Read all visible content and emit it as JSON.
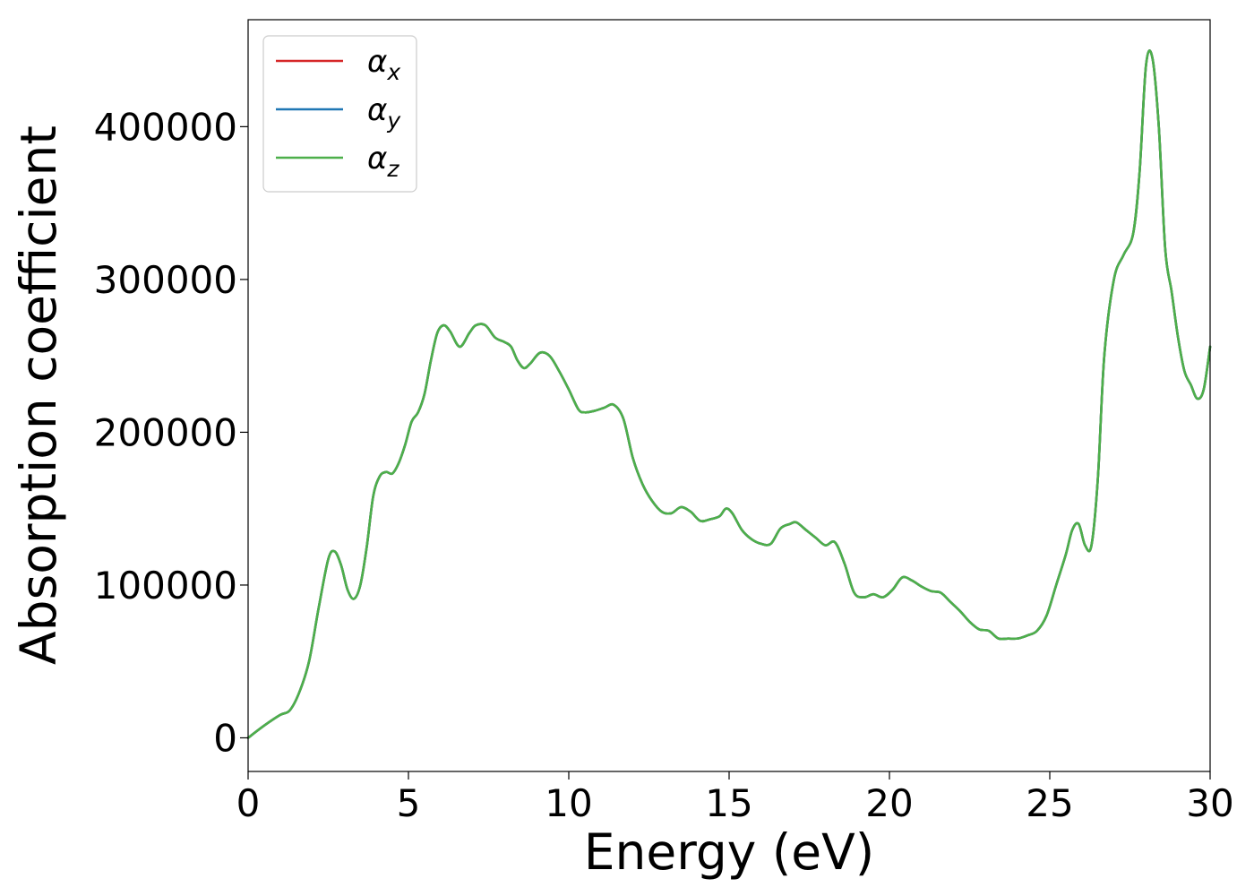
{
  "chart_data": {
    "type": "line",
    "title": "",
    "xlabel": "Energy (eV)",
    "ylabel": "Absorption coefficient",
    "xlim": [
      0,
      30
    ],
    "ylim": [
      -22000,
      470000
    ],
    "xticks": [
      0,
      5,
      10,
      15,
      20,
      25,
      30
    ],
    "yticks": [
      0,
      100000,
      200000,
      300000,
      400000
    ],
    "xtick_labels": [
      "0",
      "5",
      "10",
      "15",
      "20",
      "25",
      "30"
    ],
    "ytick_labels": [
      "0",
      "100000",
      "200000",
      "300000",
      "400000"
    ],
    "grid": false,
    "legend_position": "top-left",
    "series": [
      {
        "name": "αx",
        "label_base": "α",
        "label_sub": "x",
        "color": "#d62728"
      },
      {
        "name": "αy",
        "label_base": "α",
        "label_sub": "y",
        "color": "#1f77b4"
      },
      {
        "name": "αz",
        "label_base": "α",
        "label_sub": "z",
        "color": "#4daf4a"
      }
    ],
    "x": [
      0,
      0.5,
      1.0,
      1.3,
      1.6,
      1.9,
      2.2,
      2.5,
      2.7,
      2.9,
      3.1,
      3.3,
      3.5,
      3.7,
      3.9,
      4.1,
      4.3,
      4.5,
      4.7,
      4.9,
      5.1,
      5.3,
      5.5,
      5.7,
      5.9,
      6.1,
      6.3,
      6.6,
      6.9,
      7.1,
      7.4,
      7.7,
      8.0,
      8.2,
      8.4,
      8.6,
      8.8,
      9.1,
      9.4,
      9.7,
      10.0,
      10.3,
      10.5,
      10.8,
      11.1,
      11.4,
      11.7,
      12.0,
      12.3,
      12.6,
      12.9,
      13.2,
      13.5,
      13.8,
      14.1,
      14.4,
      14.7,
      14.9,
      15.1,
      15.4,
      15.7,
      16.0,
      16.3,
      16.6,
      16.9,
      17.1,
      17.4,
      17.7,
      18.0,
      18.3,
      18.6,
      18.9,
      19.2,
      19.5,
      19.8,
      20.1,
      20.4,
      20.7,
      21.0,
      21.3,
      21.6,
      21.9,
      22.2,
      22.5,
      22.8,
      23.1,
      23.4,
      23.7,
      24.0,
      24.3,
      24.6,
      24.9,
      25.2,
      25.5,
      25.7,
      25.9,
      26.1,
      26.3,
      26.5,
      26.7,
      27.0,
      27.3,
      27.6,
      27.8,
      28.0,
      28.2,
      28.4,
      28.6,
      28.8,
      29.0,
      29.2,
      29.4,
      29.6,
      29.8,
      30.0
    ],
    "y": [
      0,
      8000,
      15000,
      18000,
      30000,
      50000,
      85000,
      117000,
      122000,
      113000,
      97000,
      91000,
      100000,
      125000,
      158000,
      171000,
      174000,
      173000,
      180000,
      192000,
      207000,
      213000,
      225000,
      247000,
      265000,
      270000,
      266000,
      256000,
      265000,
      270000,
      270000,
      262000,
      259000,
      256000,
      247000,
      242000,
      245000,
      252000,
      250000,
      240000,
      228000,
      215000,
      213000,
      214000,
      216000,
      218000,
      209000,
      183000,
      166000,
      155000,
      148000,
      147000,
      151000,
      148000,
      142000,
      143000,
      145000,
      150000,
      147000,
      136000,
      130000,
      127000,
      127000,
      137000,
      140000,
      141000,
      136000,
      131000,
      126000,
      128000,
      114000,
      95000,
      92000,
      94000,
      92000,
      97000,
      105000,
      103000,
      99000,
      96000,
      95000,
      89000,
      83000,
      76000,
      71000,
      70000,
      65000,
      65000,
      65000,
      67000,
      70000,
      80000,
      100000,
      120000,
      136000,
      140000,
      126000,
      126000,
      170000,
      250000,
      300000,
      316000,
      330000,
      370000,
      440000,
      445000,
      400000,
      320000,
      292000,
      262000,
      240000,
      231000,
      222000,
      228000,
      256000
    ]
  }
}
